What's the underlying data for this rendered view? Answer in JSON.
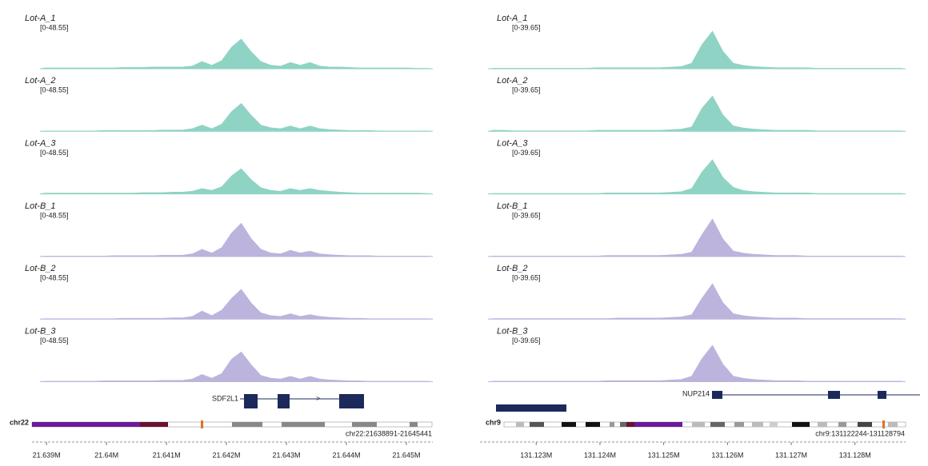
{
  "panels": [
    {
      "ymax": 48.55,
      "gene": "SDF2L1",
      "chromosome": "chr22",
      "locus": "chr22:21638891-21645441",
      "xlim": [
        21638891,
        21645441
      ],
      "xticks": [
        {
          "value": 21639000,
          "label": "21.639M"
        },
        {
          "value": 21640000,
          "label": "21.64M"
        },
        {
          "value": 21641000,
          "label": "21.641M"
        },
        {
          "value": 21642000,
          "label": "21.642M"
        },
        {
          "value": 21643000,
          "label": "21.643M"
        },
        {
          "value": 21644000,
          "label": "21.644M"
        },
        {
          "value": 21645000,
          "label": "21.645M"
        }
      ],
      "tracks": [
        {
          "name": "Lot-A_1",
          "range": "[0-48.55]",
          "color": "#8fd3c4",
          "coverage": [
            1,
            1,
            1,
            1,
            1,
            1,
            1,
            1,
            1.5,
            1.5,
            1.5,
            2,
            2,
            2,
            2,
            3,
            8,
            4,
            9,
            24,
            33,
            19,
            8,
            4,
            3,
            7,
            4,
            7,
            3,
            2,
            2,
            1.5,
            1,
            1,
            1,
            1,
            1,
            1,
            0.5,
            0.5
          ]
        },
        {
          "name": "Lot-A_2",
          "range": "[0-48.55]",
          "color": "#8fd3c4",
          "coverage": [
            0.5,
            0.5,
            0.5,
            0.5,
            0.5,
            0.5,
            1,
            1,
            1,
            1,
            1,
            1,
            1.5,
            1.5,
            1.5,
            3,
            7,
            3,
            8,
            22,
            31,
            18,
            7,
            4,
            3,
            6,
            3,
            6,
            3,
            2,
            1.5,
            1,
            1,
            1,
            0.5,
            0.5,
            0.5,
            0.5,
            0.5,
            0.5
          ]
        },
        {
          "name": "Lot-A_3",
          "range": "[0-48.55]",
          "color": "#8fd3c4",
          "coverage": [
            1,
            1,
            1,
            1,
            1,
            1,
            1,
            1,
            1,
            1,
            1.5,
            1.5,
            1.5,
            2,
            2,
            3,
            6,
            4,
            8,
            20,
            28,
            16,
            7,
            4,
            3,
            6,
            4,
            6,
            4,
            3,
            2,
            1.5,
            1,
            1,
            1,
            1,
            1,
            1,
            1,
            0.5
          ]
        },
        {
          "name": "Lot-B_1",
          "range": "[0-48.55]",
          "color": "#bcb4dc",
          "coverage": [
            0.5,
            0.5,
            0.5,
            0.5,
            0.5,
            0.5,
            0.5,
            1,
            1,
            1,
            1,
            1,
            1.5,
            1.5,
            1.5,
            3,
            8,
            4,
            10,
            26,
            37,
            20,
            8,
            4,
            3,
            7,
            4,
            6,
            3,
            2,
            1.5,
            1,
            1,
            1,
            0.5,
            0.5,
            0.5,
            0.5,
            0.5,
            0.5
          ]
        },
        {
          "name": "Lot-B_2",
          "range": "[0-48.55]",
          "color": "#bcb4dc",
          "coverage": [
            0.5,
            0.5,
            0.5,
            0.5,
            0.5,
            0.5,
            0.5,
            0.5,
            1,
            1,
            1,
            1,
            1,
            1.5,
            1.5,
            3,
            9,
            4,
            10,
            23,
            33,
            18,
            7,
            4,
            3,
            6,
            3,
            5,
            3,
            2,
            1.5,
            1,
            1,
            0.5,
            0.5,
            0.5,
            0.5,
            0.5,
            0.5,
            0.5
          ]
        },
        {
          "name": "Lot-B_3",
          "range": "[0-48.55]",
          "color": "#bcb4dc",
          "coverage": [
            0.5,
            0.5,
            0.5,
            0.5,
            0.5,
            0.5,
            1,
            1,
            1,
            1,
            1,
            1,
            1.5,
            1.5,
            1.5,
            3,
            8,
            4,
            9,
            25,
            33,
            19,
            7,
            4,
            3,
            6,
            3,
            6,
            3,
            2,
            1.5,
            1,
            1,
            0.5,
            0.5,
            0.5,
            0.5,
            0.5,
            0.5,
            0.5
          ]
        }
      ]
    },
    {
      "ymax": 39.65,
      "gene": "NUP214",
      "chromosome": "chr9",
      "locus": "chr9:131122244-131128794",
      "xlim": [
        131122244,
        131128794
      ],
      "xticks": [
        {
          "value": 131123000,
          "label": "131.123M"
        },
        {
          "value": 131124000,
          "label": "131.124M"
        },
        {
          "value": 131125000,
          "label": "131.125M"
        },
        {
          "value": 131126000,
          "label": "131.126M"
        },
        {
          "value": 131127000,
          "label": "131.127M"
        },
        {
          "value": 131128000,
          "label": "131.128M"
        }
      ],
      "tracks": [
        {
          "name": "Lot-A_1",
          "range": "[0-39.65]",
          "color": "#8fd3c4",
          "coverage": [
            0.5,
            0.5,
            0.5,
            0.5,
            0.5,
            0.5,
            0.5,
            0.5,
            0.5,
            0.5,
            1,
            1,
            1,
            1,
            1,
            1,
            1,
            1.5,
            2,
            5,
            22,
            34,
            16,
            5,
            3,
            2,
            1.5,
            1,
            1,
            1,
            1,
            0.5,
            0.5,
            0.5,
            0.5,
            0.5,
            0.5,
            0.5,
            0.5,
            0.5
          ]
        },
        {
          "name": "Lot-A_2",
          "range": "[0-39.65]",
          "color": "#8fd3c4",
          "coverage": [
            1,
            1,
            0.5,
            0.5,
            0.5,
            0.5,
            0.5,
            0.5,
            0.5,
            0.5,
            1,
            1,
            1,
            1,
            1,
            1,
            1,
            1.5,
            2,
            4,
            21,
            32,
            15,
            5,
            3,
            2,
            1.5,
            1,
            1,
            1,
            1,
            0.5,
            0.5,
            0.5,
            0.5,
            0.5,
            0.5,
            0.5,
            0.5,
            0.5
          ]
        },
        {
          "name": "Lot-A_3",
          "range": "[0-39.65]",
          "color": "#8fd3c4",
          "coverage": [
            0.5,
            0.5,
            0.5,
            0.5,
            0.5,
            0.5,
            0.5,
            0.5,
            0.5,
            0.5,
            0.5,
            1,
            1,
            1,
            1,
            1,
            1,
            1.5,
            2,
            5,
            20,
            31,
            15,
            6,
            3,
            2,
            1.5,
            1,
            1,
            1,
            1,
            0.5,
            0.5,
            0.5,
            0.5,
            0.5,
            0.5,
            0.5,
            0.5,
            0.5
          ]
        },
        {
          "name": "Lot-B_1",
          "range": "[0-39.65]",
          "color": "#bcb4dc",
          "coverage": [
            0.5,
            0.5,
            0.5,
            0.5,
            0.5,
            0.5,
            0.5,
            0.5,
            0.5,
            0.5,
            0.5,
            1,
            1,
            1,
            1,
            1,
            1,
            1.5,
            2,
            4,
            20,
            34,
            16,
            5,
            3,
            2,
            1.5,
            1,
            1,
            1,
            0.5,
            0.5,
            0.5,
            0.5,
            0.5,
            0.5,
            0.5,
            0.5,
            0.5,
            0.5
          ]
        },
        {
          "name": "Lot-B_2",
          "range": "[0-39.65]",
          "color": "#bcb4dc",
          "coverage": [
            0.5,
            0.5,
            0.5,
            0.5,
            0.5,
            0.5,
            0.5,
            0.5,
            0.5,
            0.5,
            0.5,
            0.5,
            1,
            1,
            1,
            1,
            1,
            1.5,
            2,
            4,
            19,
            32,
            15,
            5,
            3,
            2,
            1.5,
            1,
            1,
            1,
            0.5,
            0.5,
            0.5,
            0.5,
            0.5,
            0.5,
            0.5,
            0.5,
            0.5,
            0.5
          ]
        },
        {
          "name": "Lot-B_3",
          "range": "[0-39.65]",
          "color": "#bcb4dc",
          "coverage": [
            0.5,
            0.5,
            0.5,
            0.5,
            0.5,
            0.5,
            0.5,
            0.5,
            0.5,
            0.5,
            0.5,
            1,
            1,
            1,
            1,
            1,
            1,
            1.5,
            2,
            5,
            21,
            33,
            16,
            5,
            3,
            2,
            1.5,
            1,
            1,
            1,
            0.5,
            0.5,
            0.5,
            0.5,
            0.5,
            0.5,
            0.5,
            0.5,
            0.5,
            0.5
          ]
        }
      ]
    }
  ]
}
